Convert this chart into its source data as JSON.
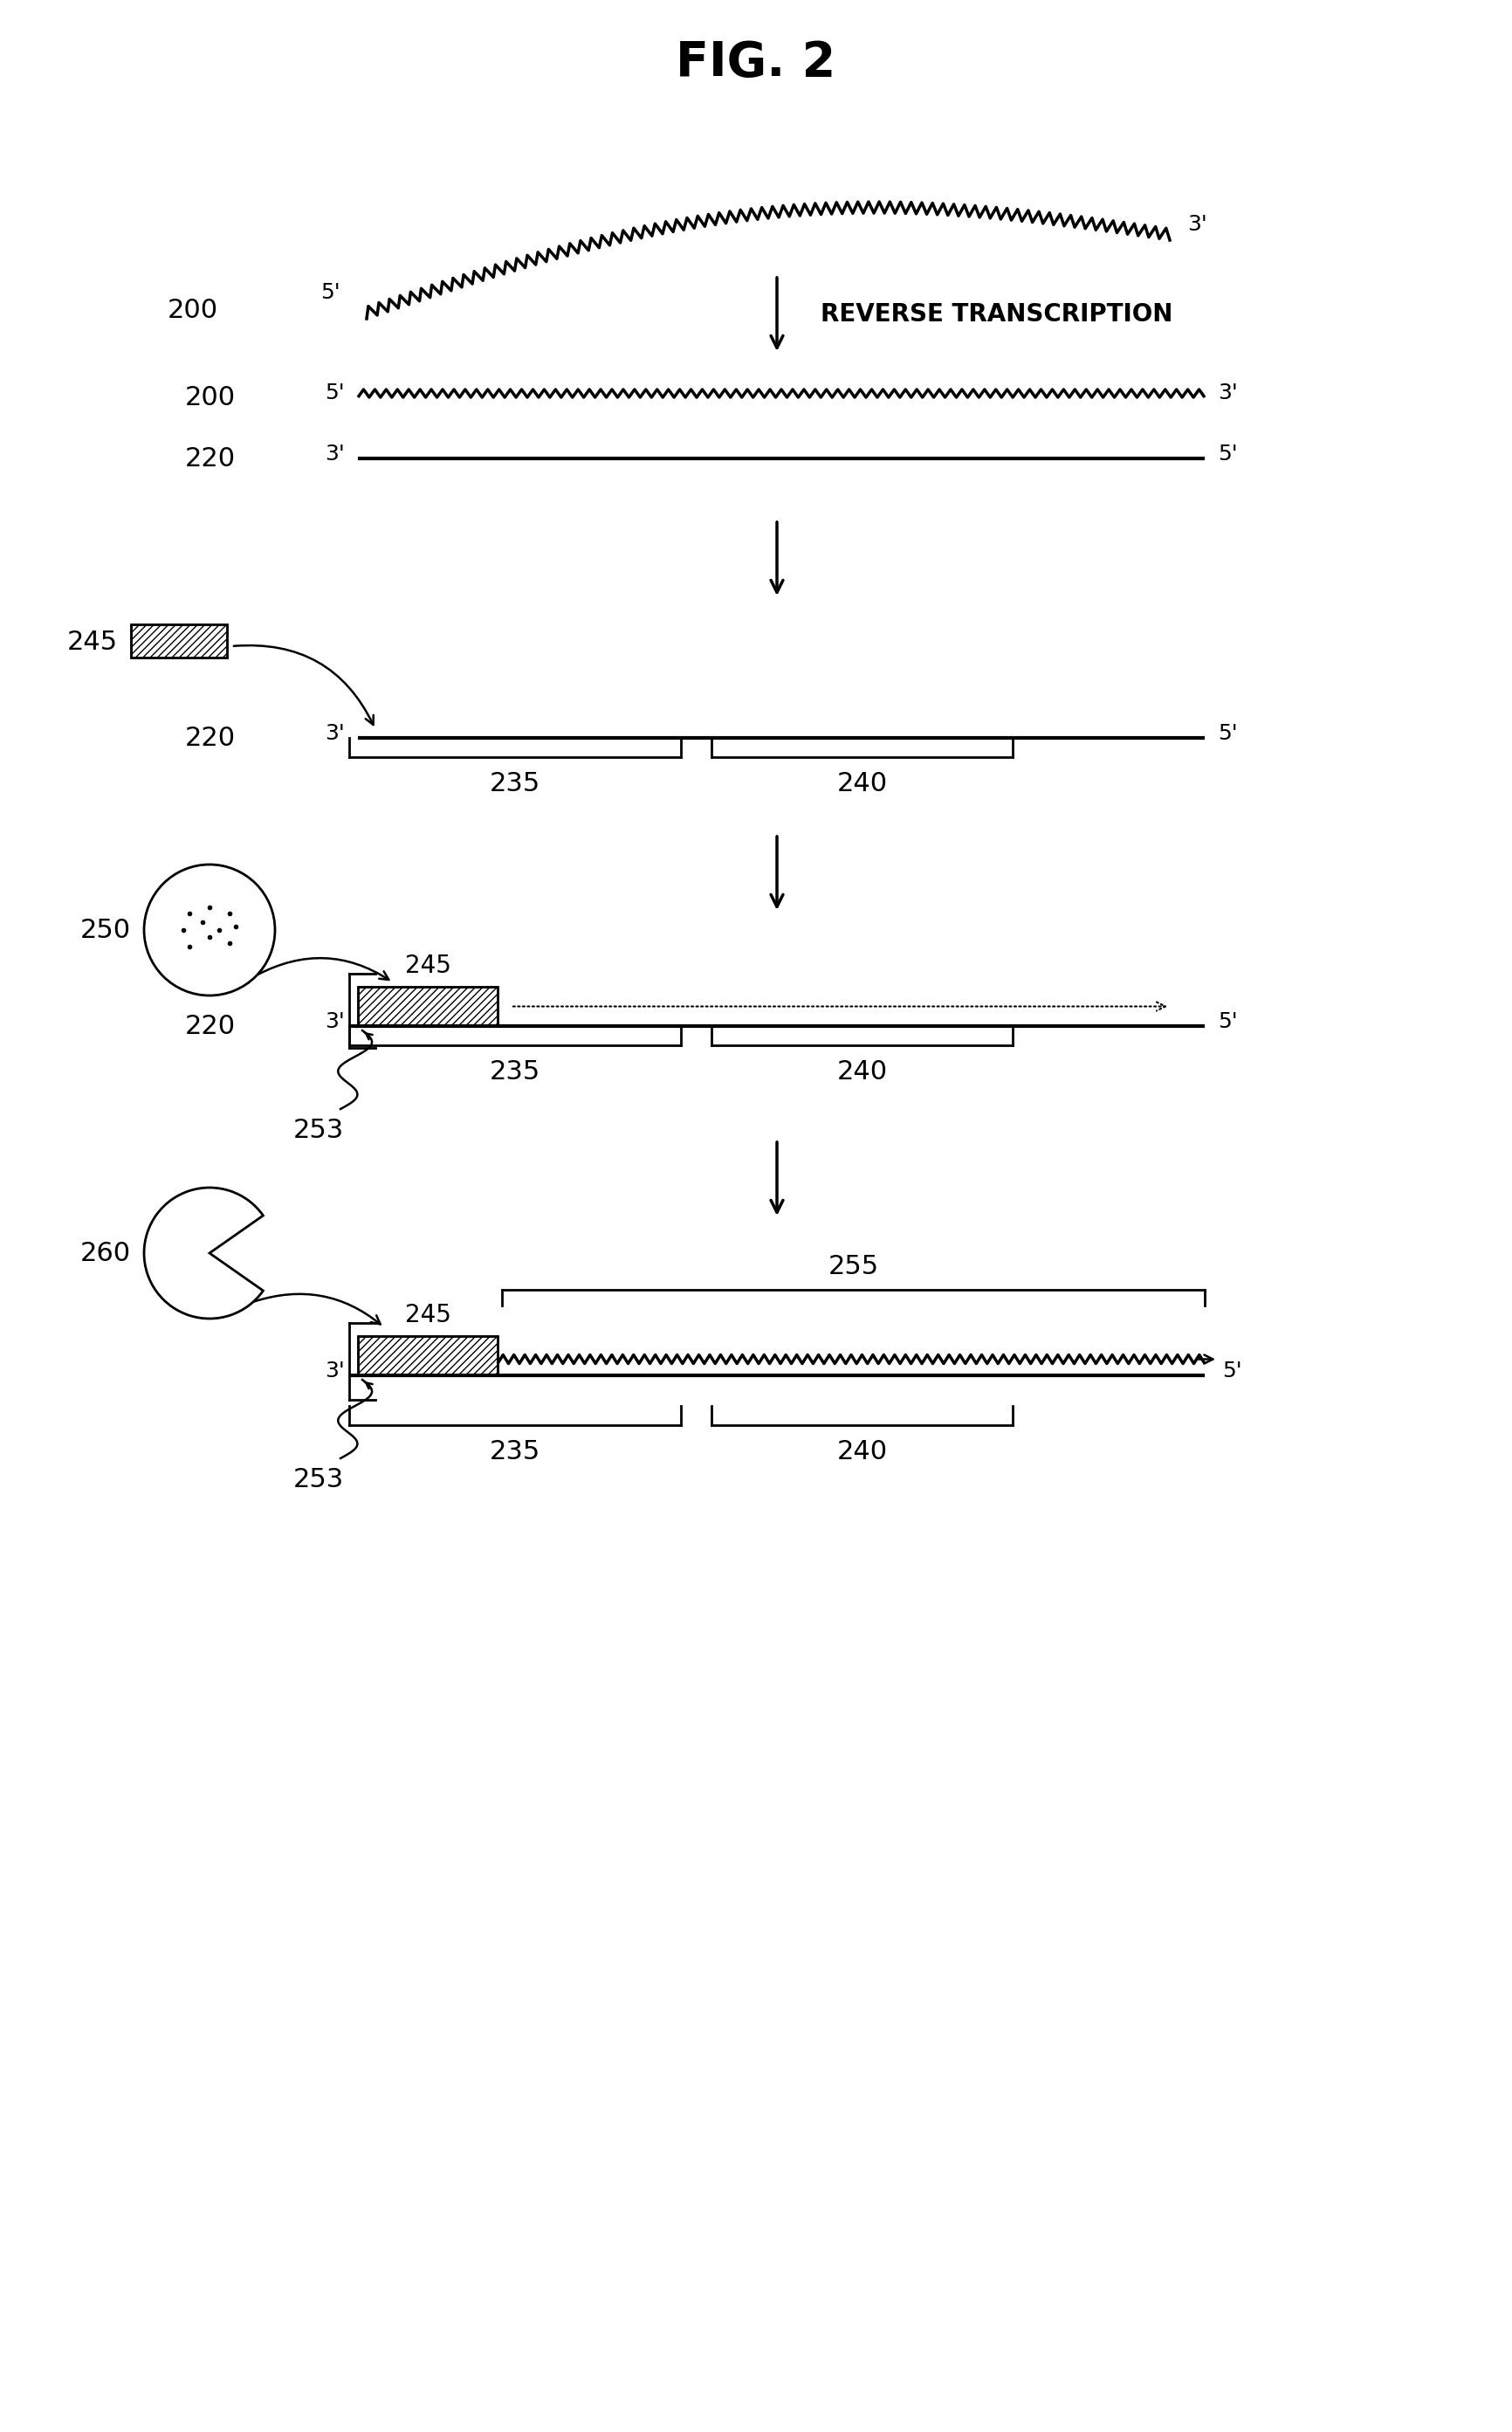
{
  "title": "FIG. 2",
  "bg_color": "#ffffff",
  "text_color": "#000000",
  "reverse_transcription": "REVERSE TRANSCRIPTION",
  "labels": {
    "200": "200",
    "220": "220",
    "245": "245",
    "250": "250",
    "260": "260",
    "253": "253",
    "255": "255",
    "235": "235",
    "240": "240"
  },
  "fs_title": 40,
  "fs_label": 22,
  "fs_prime": 18,
  "fs_step": 20,
  "lw_strand": 3.0,
  "lw_zigzag": 2.5,
  "lw_arrow": 2.5,
  "lw_bracket": 2.0
}
